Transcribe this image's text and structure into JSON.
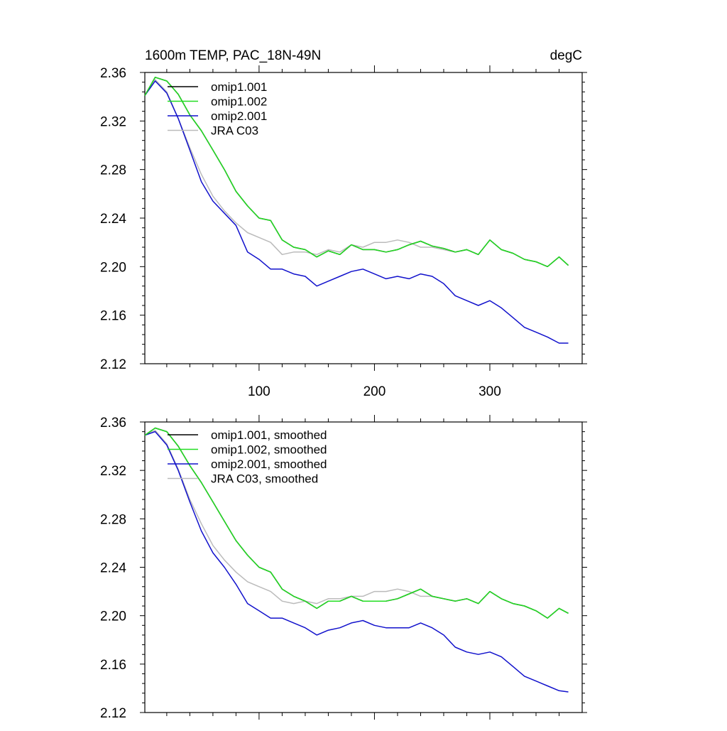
{
  "figure": {
    "title_left": "1600m TEMP, PAC_18N-49N",
    "title_right": "degC"
  },
  "chart_data": [
    {
      "type": "line",
      "name": "raw",
      "xlim": [
        1,
        380
      ],
      "ylim": [
        2.12,
        2.36
      ],
      "x_ticks": [
        100,
        200,
        300
      ],
      "y_ticks": [
        2.12,
        2.16,
        2.2,
        2.24,
        2.28,
        2.32,
        2.36
      ],
      "x_tick_labels": [
        "100",
        "200",
        "300"
      ],
      "y_tick_labels": [
        "2.12",
        "2.16",
        "2.20",
        "2.24",
        "2.28",
        "2.32",
        "2.36"
      ],
      "legend": [
        "omip1.001",
        "omip1.002",
        "omip2.001",
        "JRA C03"
      ],
      "legend_position": "top-left",
      "series": [
        {
          "name": "omip1.001",
          "color": "#000000",
          "x": [
            1,
            10,
            20,
            30,
            40,
            50,
            60,
            70,
            80,
            90,
            100,
            110,
            120,
            130,
            140,
            150,
            160,
            170,
            180,
            190,
            200,
            210,
            220,
            230,
            240,
            250,
            260,
            270,
            280,
            290,
            300,
            310,
            320,
            330,
            340,
            350,
            360,
            368
          ],
          "y": [
            2.341,
            2.356,
            2.353,
            2.342,
            2.325,
            2.312,
            2.296,
            2.28,
            2.262,
            2.25,
            2.24,
            2.238,
            2.222,
            2.216,
            2.214,
            2.208,
            2.213,
            2.21,
            2.218,
            2.214,
            2.214,
            2.212,
            2.214,
            2.218,
            2.221,
            2.217,
            2.215,
            2.212,
            2.214,
            2.21,
            2.222,
            2.214,
            2.211,
            2.206,
            2.204,
            2.2,
            2.208,
            2.201
          ]
        },
        {
          "name": "omip1.002",
          "color": "#22dd22",
          "x": [
            1,
            10,
            20,
            30,
            40,
            50,
            60,
            70,
            80,
            90,
            100,
            110,
            120,
            130,
            140,
            150,
            160,
            170,
            180,
            190,
            200,
            210,
            220,
            230,
            240,
            250,
            260,
            270,
            280,
            290,
            300,
            310,
            320,
            330,
            340,
            350,
            360,
            368
          ],
          "y": [
            2.341,
            2.356,
            2.353,
            2.342,
            2.325,
            2.312,
            2.296,
            2.28,
            2.262,
            2.25,
            2.24,
            2.238,
            2.222,
            2.216,
            2.214,
            2.208,
            2.213,
            2.21,
            2.218,
            2.214,
            2.214,
            2.212,
            2.214,
            2.218,
            2.221,
            2.217,
            2.215,
            2.212,
            2.214,
            2.21,
            2.222,
            2.214,
            2.211,
            2.206,
            2.204,
            2.2,
            2.208,
            2.201
          ]
        },
        {
          "name": "omip2.001",
          "color": "#1111cc",
          "x": [
            1,
            10,
            20,
            30,
            40,
            50,
            60,
            70,
            80,
            90,
            100,
            110,
            120,
            130,
            140,
            150,
            160,
            170,
            180,
            190,
            200,
            210,
            220,
            230,
            240,
            250,
            260,
            270,
            280,
            290,
            300,
            310,
            320,
            330,
            340,
            350,
            360,
            368
          ],
          "y": [
            2.341,
            2.353,
            2.343,
            2.322,
            2.296,
            2.27,
            2.254,
            2.244,
            2.234,
            2.212,
            2.206,
            2.198,
            2.198,
            2.194,
            2.192,
            2.184,
            2.188,
            2.192,
            2.196,
            2.198,
            2.194,
            2.19,
            2.192,
            2.19,
            2.194,
            2.192,
            2.186,
            2.176,
            2.172,
            2.168,
            2.172,
            2.166,
            2.158,
            2.15,
            2.146,
            2.142,
            2.137,
            2.137
          ]
        },
        {
          "name": "JRA C03",
          "color": "#bbbbbb",
          "x": [
            1,
            10,
            20,
            30,
            40,
            50,
            60,
            70,
            80,
            90,
            100,
            110,
            120,
            130,
            140,
            150,
            160,
            170,
            180,
            190,
            200,
            210,
            220,
            230,
            240,
            250,
            260,
            270,
            280
          ],
          "y": [
            2.341,
            2.354,
            2.344,
            2.322,
            2.298,
            2.276,
            2.258,
            2.246,
            2.236,
            2.228,
            2.224,
            2.22,
            2.21,
            2.212,
            2.212,
            2.21,
            2.214,
            2.212,
            2.218,
            2.216,
            2.22,
            2.22,
            2.222,
            2.22,
            2.216,
            2.216,
            2.214,
            2.212,
            2.214
          ]
        }
      ]
    },
    {
      "type": "line",
      "name": "smoothed",
      "xlim": [
        1,
        380
      ],
      "ylim": [
        2.12,
        2.36
      ],
      "x_ticks": [
        100,
        200,
        300
      ],
      "y_ticks": [
        2.12,
        2.16,
        2.2,
        2.24,
        2.28,
        2.32,
        2.36
      ],
      "x_tick_labels": [],
      "y_tick_labels": [
        "2.12",
        "2.16",
        "2.20",
        "2.24",
        "2.28",
        "2.32",
        "2.36"
      ],
      "legend": [
        "omip1.001, smoothed",
        "omip1.002, smoothed",
        "omip2.001, smoothed",
        "JRA C03, smoothed"
      ],
      "legend_position": "top-left",
      "series": [
        {
          "name": "omip1.001, smoothed",
          "color": "#000000",
          "x": [
            1,
            10,
            20,
            30,
            40,
            50,
            60,
            70,
            80,
            90,
            100,
            110,
            120,
            130,
            140,
            150,
            160,
            170,
            180,
            190,
            200,
            210,
            220,
            230,
            240,
            250,
            260,
            270,
            280,
            290,
            300,
            310,
            320,
            330,
            340,
            350,
            360,
            368
          ],
          "y": [
            2.349,
            2.355,
            2.352,
            2.34,
            2.324,
            2.31,
            2.294,
            2.278,
            2.262,
            2.25,
            2.24,
            2.236,
            2.222,
            2.216,
            2.212,
            2.206,
            2.212,
            2.212,
            2.216,
            2.212,
            2.212,
            2.212,
            2.214,
            2.218,
            2.222,
            2.216,
            2.214,
            2.212,
            2.214,
            2.21,
            2.22,
            2.214,
            2.21,
            2.208,
            2.204,
            2.198,
            2.206,
            2.202
          ]
        },
        {
          "name": "omip1.002, smoothed",
          "color": "#22dd22",
          "x": [
            1,
            10,
            20,
            30,
            40,
            50,
            60,
            70,
            80,
            90,
            100,
            110,
            120,
            130,
            140,
            150,
            160,
            170,
            180,
            190,
            200,
            210,
            220,
            230,
            240,
            250,
            260,
            270,
            280,
            290,
            300,
            310,
            320,
            330,
            340,
            350,
            360,
            368
          ],
          "y": [
            2.349,
            2.355,
            2.352,
            2.34,
            2.324,
            2.31,
            2.294,
            2.278,
            2.262,
            2.25,
            2.24,
            2.236,
            2.222,
            2.216,
            2.212,
            2.206,
            2.212,
            2.212,
            2.216,
            2.212,
            2.212,
            2.212,
            2.214,
            2.218,
            2.222,
            2.216,
            2.214,
            2.212,
            2.214,
            2.21,
            2.22,
            2.214,
            2.21,
            2.208,
            2.204,
            2.198,
            2.206,
            2.202
          ]
        },
        {
          "name": "omip2.001, smoothed",
          "color": "#1111cc",
          "x": [
            1,
            10,
            20,
            30,
            40,
            50,
            60,
            70,
            80,
            90,
            100,
            110,
            120,
            130,
            140,
            150,
            160,
            170,
            180,
            190,
            200,
            210,
            220,
            230,
            240,
            250,
            260,
            270,
            280,
            290,
            300,
            310,
            320,
            330,
            340,
            350,
            360,
            368
          ],
          "y": [
            2.349,
            2.352,
            2.341,
            2.32,
            2.294,
            2.27,
            2.252,
            2.24,
            2.226,
            2.21,
            2.204,
            2.198,
            2.198,
            2.194,
            2.19,
            2.184,
            2.188,
            2.19,
            2.194,
            2.196,
            2.192,
            2.19,
            2.19,
            2.19,
            2.194,
            2.19,
            2.184,
            2.174,
            2.17,
            2.168,
            2.17,
            2.166,
            2.158,
            2.15,
            2.146,
            2.142,
            2.138,
            2.137
          ]
        },
        {
          "name": "JRA C03, smoothed",
          "color": "#bbbbbb",
          "x": [
            1,
            10,
            20,
            30,
            40,
            50,
            60,
            70,
            80,
            90,
            100,
            110,
            120,
            130,
            140,
            150,
            160,
            170,
            180,
            190,
            200,
            210,
            220,
            230,
            240,
            250,
            260,
            270,
            280
          ],
          "y": [
            2.349,
            2.353,
            2.342,
            2.321,
            2.296,
            2.276,
            2.258,
            2.246,
            2.236,
            2.228,
            2.224,
            2.22,
            2.212,
            2.21,
            2.212,
            2.21,
            2.214,
            2.214,
            2.216,
            2.216,
            2.22,
            2.22,
            2.222,
            2.22,
            2.216,
            2.216,
            2.214,
            2.212,
            2.214
          ]
        }
      ]
    }
  ]
}
